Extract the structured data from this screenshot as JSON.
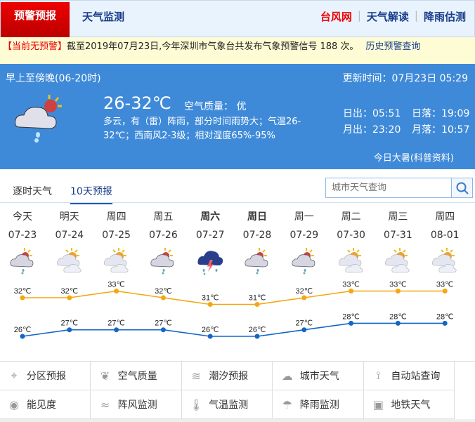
{
  "header": {
    "tab_warning": "预警预报",
    "tab_monitor": "天气监测",
    "links": [
      "台风网",
      "天气解读",
      "降雨估测"
    ]
  },
  "warning_bar": {
    "status": "【当前无预警】",
    "text": "截至2019年07月23日,今年深圳市气象台共发布气象预警信号 188 次。",
    "history_link": "历史预警查询"
  },
  "today": {
    "period": "早上至傍晚(06-20时)",
    "updated": "更新时间：07月23日 05:29",
    "temp": "26-32℃",
    "aqi": "空气质量： 优",
    "desc": "多云，有（雷）阵雨，部分时间雨势大；气温26-32℃；西南风2-3级；相对湿度65%-95%",
    "sunrise": "日出：05:51",
    "sunset": "日落：19:09",
    "moonrise": "月出：23:20",
    "moonset": "月落：10:57",
    "solar_term": "今日大暑(科普资料)"
  },
  "tabs": [
    "逐时天气",
    "10天预报"
  ],
  "search": {
    "placeholder": "城市天气查询"
  },
  "forecast": {
    "days": [
      {
        "day": "今天",
        "date": "07-23",
        "icon": "cloud-rain",
        "high": "32℃",
        "low": "26℃"
      },
      {
        "day": "明天",
        "date": "07-24",
        "icon": "partly-cloudy",
        "high": "32℃",
        "low": "27℃"
      },
      {
        "day": "周四",
        "date": "07-25",
        "icon": "partly-cloudy",
        "high": "33℃",
        "low": "27℃"
      },
      {
        "day": "周五",
        "date": "07-26",
        "icon": "cloud-rain",
        "high": "32℃",
        "low": "27℃"
      },
      {
        "day": "周六",
        "date": "07-27",
        "icon": "thunderstorm",
        "high": "31℃",
        "low": "26℃"
      },
      {
        "day": "周日",
        "date": "07-28",
        "icon": "cloud-rain",
        "high": "31℃",
        "low": "26℃"
      },
      {
        "day": "周一",
        "date": "07-29",
        "icon": "cloud-rain",
        "high": "32℃",
        "low": "27℃"
      },
      {
        "day": "周二",
        "date": "07-30",
        "icon": "partly-cloudy",
        "high": "33℃",
        "low": "28℃"
      },
      {
        "day": "周三",
        "date": "07-31",
        "icon": "partly-cloudy",
        "high": "33℃",
        "low": "28℃"
      },
      {
        "day": "周四",
        "date": "08-01",
        "icon": "partly-cloudy",
        "high": "33℃",
        "low": "28℃"
      }
    ],
    "high_values": [
      32,
      32,
      33,
      32,
      31,
      31,
      32,
      33,
      33,
      33
    ],
    "low_values": [
      26,
      27,
      27,
      27,
      26,
      26,
      27,
      28,
      28,
      28
    ],
    "colors": {
      "high": "#f5a70f",
      "low": "#1466c8"
    }
  },
  "services": [
    {
      "label": "分区预报",
      "icon": "map-pin-icon"
    },
    {
      "label": "空气质量",
      "icon": "leaf-icon"
    },
    {
      "label": "潮汐预报",
      "icon": "tide-icon"
    },
    {
      "label": "城市天气",
      "icon": "sun-cloud-icon"
    },
    {
      "label": "自动站查询",
      "icon": "weather-station-icon"
    },
    {
      "label": "能见度",
      "icon": "eye-icon"
    },
    {
      "label": "阵风监测",
      "icon": "wind-icon"
    },
    {
      "label": "气温监测",
      "icon": "thermometer-icon"
    },
    {
      "label": "降雨监测",
      "icon": "rain-cloud-icon"
    },
    {
      "label": "地铁天气",
      "icon": "train-icon"
    }
  ]
}
